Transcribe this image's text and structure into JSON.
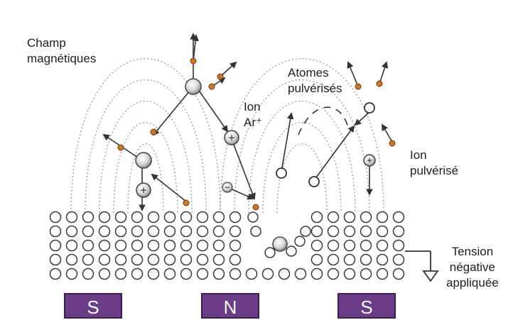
{
  "labels": {
    "magnetic_field_line1": "Champ",
    "magnetic_field_line2": "magnétiques",
    "sputtered_atoms_line1": "Atomes",
    "sputtered_atoms_line2": "pulvérisés",
    "ar_ion_line1": "Ion",
    "ar_ion_line2": "Ar⁺",
    "sputtered_ion_line1": "Ion",
    "sputtered_ion_line2": "pulvérisé",
    "voltage_line1": "Tension",
    "voltage_line2": "négative",
    "voltage_line3": "appliquée"
  },
  "magnets": [
    {
      "pole": "S"
    },
    {
      "pole": "N"
    },
    {
      "pole": "S"
    }
  ],
  "colors": {
    "magnet": "#6a3d86",
    "electron": "#c57a2a",
    "atom_ring": "#3a3a3a",
    "field_lines": "#9a9a9a"
  }
}
